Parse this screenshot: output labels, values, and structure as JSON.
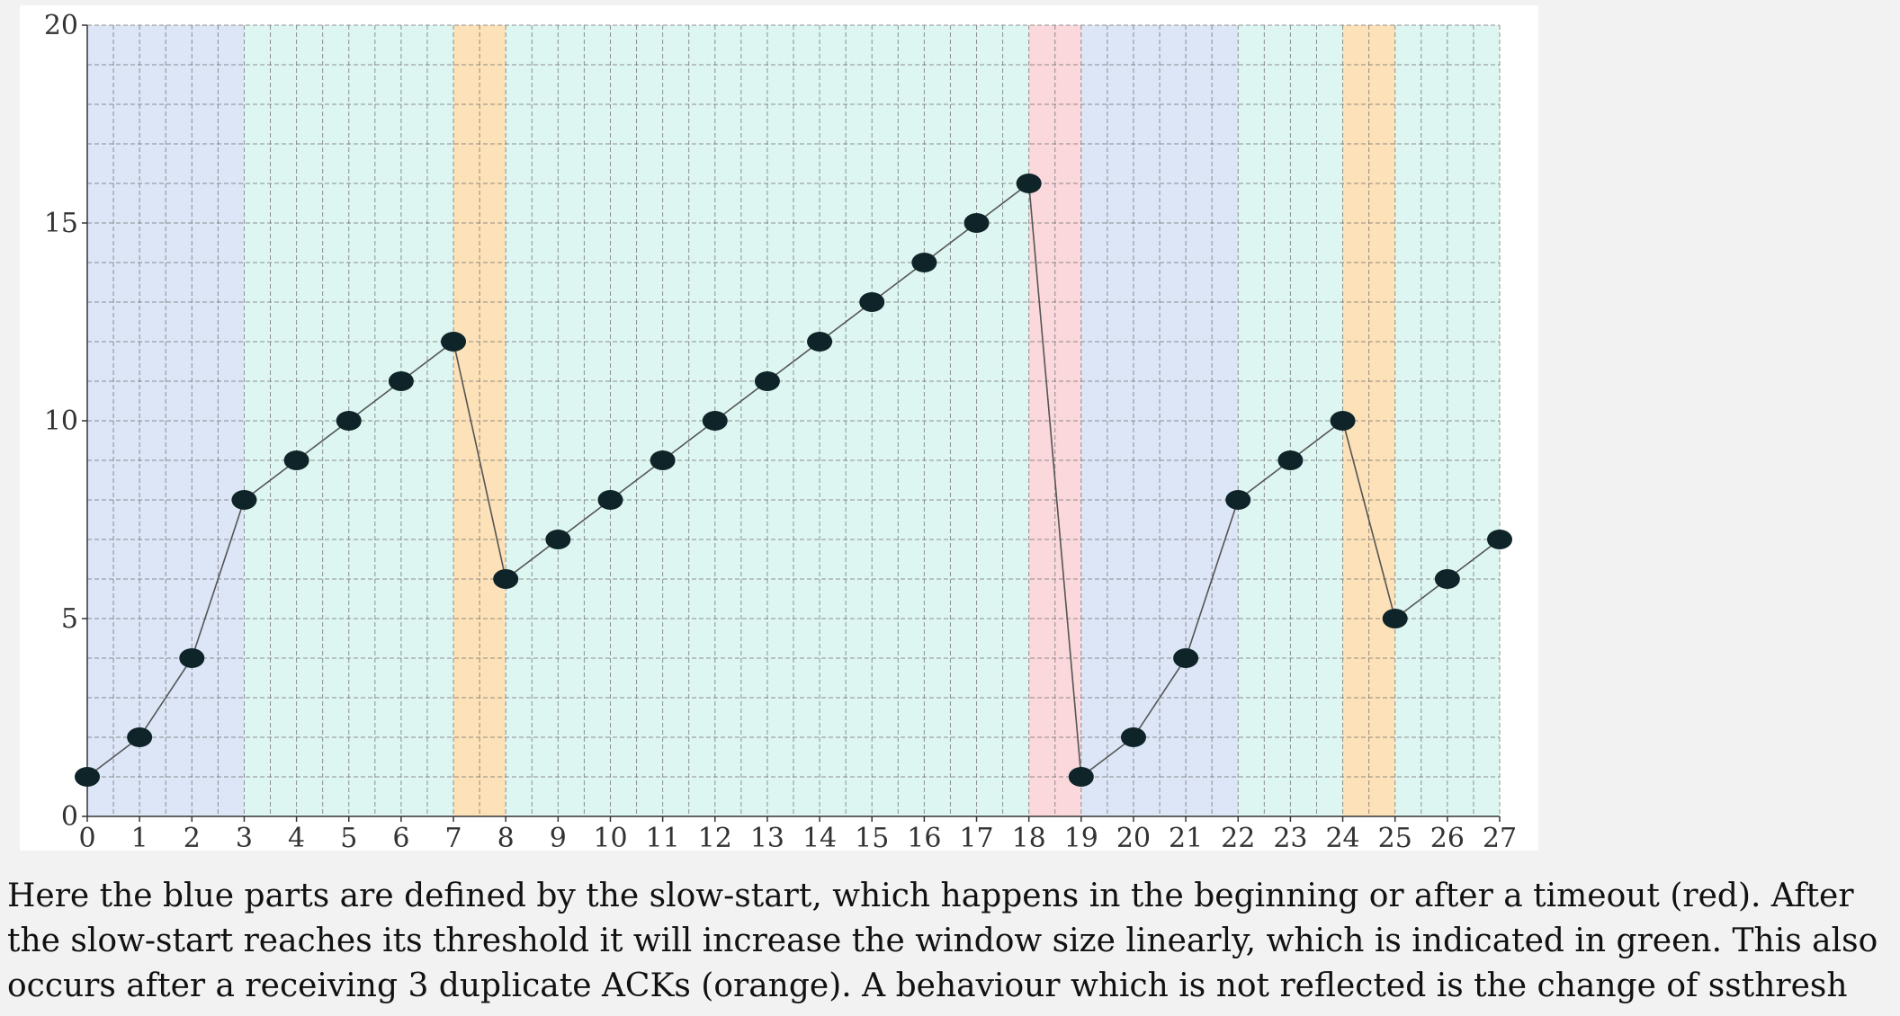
{
  "chart_data": {
    "type": "line",
    "title": "",
    "xlabel": "",
    "ylabel": "",
    "xlim": [
      0,
      27
    ],
    "ylim": [
      0,
      20
    ],
    "x_ticks": [
      "0",
      "1",
      "2",
      "3",
      "4",
      "5",
      "6",
      "7",
      "8",
      "9",
      "10",
      "11",
      "12",
      "13",
      "14",
      "15",
      "16",
      "17",
      "18",
      "19",
      "20",
      "21",
      "22",
      "23",
      "24",
      "25",
      "26",
      "27"
    ],
    "y_ticks": [
      "0",
      "5",
      "10",
      "15",
      "20"
    ],
    "grid": true,
    "grid_style": "dashed",
    "x": [
      0,
      1,
      2,
      3,
      4,
      5,
      6,
      7,
      8,
      9,
      10,
      11,
      12,
      13,
      14,
      15,
      16,
      17,
      18,
      19,
      20,
      21,
      22,
      23,
      24,
      25,
      26,
      27
    ],
    "series": [
      {
        "values": [
          1,
          2,
          4,
          8,
          9,
          10,
          11,
          12,
          6,
          7,
          8,
          9,
          10,
          11,
          12,
          13,
          14,
          15,
          16,
          1,
          2,
          4,
          8,
          9,
          10,
          5,
          6,
          7
        ]
      }
    ],
    "shaded_regions": [
      {
        "from": 0,
        "to": 3,
        "color": "#dce6f7"
      },
      {
        "from": 3,
        "to": 7,
        "color": "#ddf6f1"
      },
      {
        "from": 7,
        "to": 8,
        "color": "#fde1b8"
      },
      {
        "from": 8,
        "to": 18,
        "color": "#ddf6f1"
      },
      {
        "from": 18,
        "to": 19,
        "color": "#fad8dc"
      },
      {
        "from": 19,
        "to": 22,
        "color": "#dce6f7"
      },
      {
        "from": 22,
        "to": 24,
        "color": "#ddf6f1"
      },
      {
        "from": 24,
        "to": 25,
        "color": "#fde1b8"
      },
      {
        "from": 25,
        "to": 27,
        "color": "#ddf6f1"
      }
    ],
    "colors": {
      "line": "#555555",
      "marker": "#0e2428",
      "grid": "#6f6f6f"
    }
  },
  "caption": {
    "lines": [
      "Here the blue parts are defined by the slow-start, which happens in the beginning or after a timeout (red).  After",
      "the slow-start reaches its threshold it will increase the window size linearly, which is indicated in green.  This also",
      "occurs after a receiving 3 duplicate ACKs (orange).  A behaviour which is not reflected is the change of ssthresh"
    ]
  }
}
